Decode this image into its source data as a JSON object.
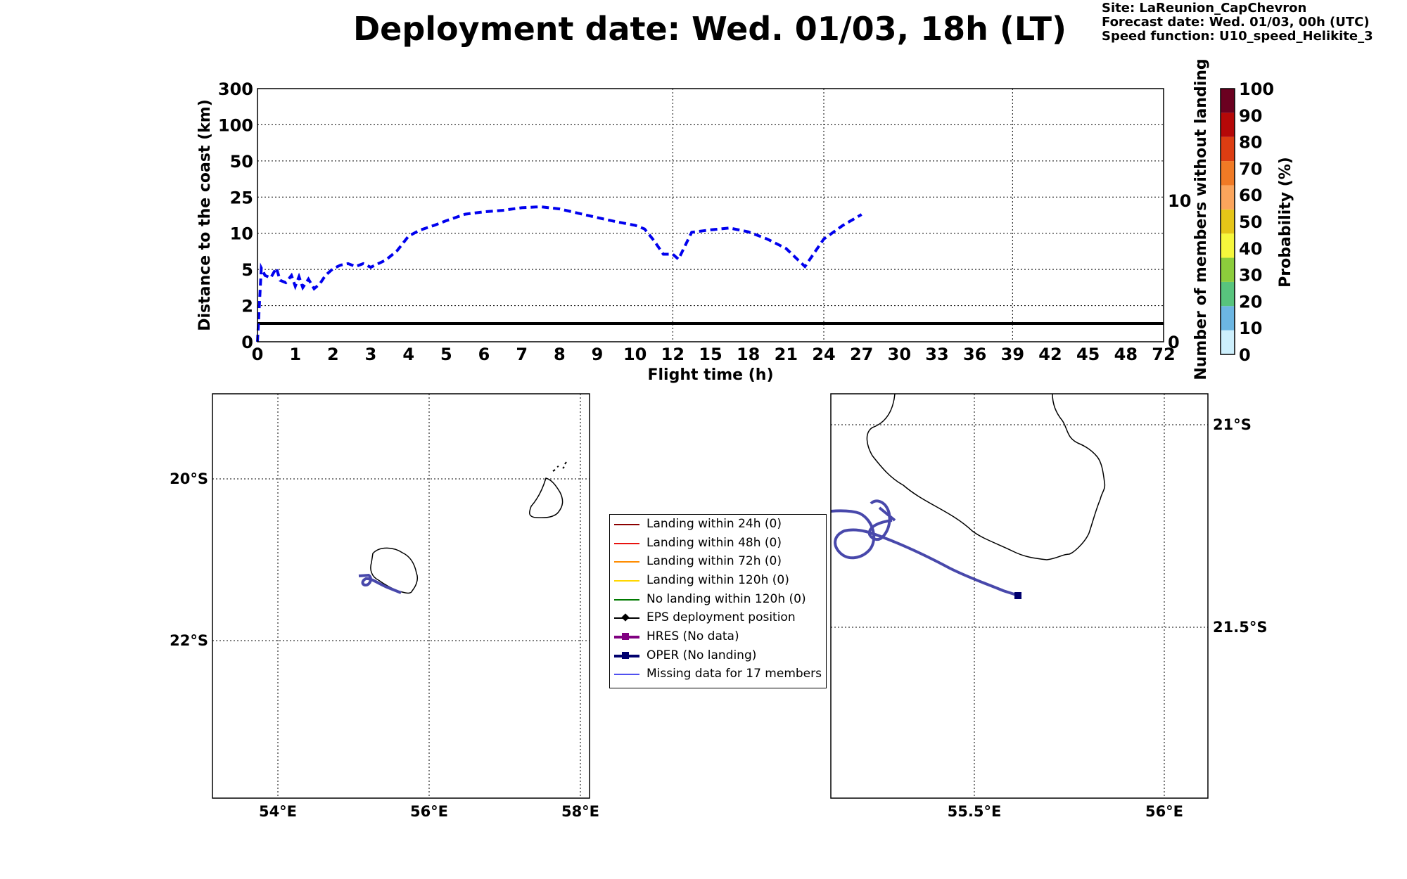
{
  "header": {
    "title": "Deployment date: Wed. 01/03, 18h (LT)",
    "site": "Site: LaReunion_CapChevron",
    "forecast": "Forecast date: Wed. 01/03, 00h (UTC)",
    "speed": "Speed function: U10_speed_Helikite_3"
  },
  "chart_data": [
    {
      "type": "line",
      "title": "",
      "xlabel": "Flight time (h)",
      "ylabel": "Distance to the coast (km)",
      "y2label": "Number of members without landing",
      "x_ticks": [
        "0",
        "1",
        "2",
        "3",
        "4",
        "5",
        "6",
        "7",
        "8",
        "9",
        "10",
        "12",
        "15",
        "18",
        "21",
        "24",
        "27",
        "30",
        "33",
        "36",
        "39",
        "42",
        "45",
        "48",
        "72"
      ],
      "y_ticks": [
        "0",
        "2",
        "5",
        "10",
        "25",
        "50",
        "100",
        "300"
      ],
      "y2_ticks": [
        "0",
        "10"
      ],
      "grid": true,
      "series": [
        {
          "style": "dashed",
          "color": "#0000ee",
          "x": [
            0,
            0.1,
            0.2,
            0.35,
            0.5,
            0.6,
            0.75,
            0.9,
            1.0,
            1.1,
            1.2,
            1.35,
            1.5,
            1.65,
            1.8,
            2.0,
            2.2,
            2.4,
            2.6,
            2.8,
            3.0,
            3.2,
            3.4,
            3.7,
            4.0,
            4.3,
            4.7,
            5.0,
            5.5,
            6.0,
            6.5,
            7.0,
            7.5,
            8.0,
            8.5,
            9.0,
            9.5,
            10.0,
            10.5,
            11.0,
            11.5,
            12.0,
            12.45,
            13.5,
            15.0,
            16.5,
            18.0,
            19.5,
            21.0,
            22.5,
            24.0,
            25.5,
            27.0
          ],
          "y": [
            0,
            5.2,
            4.5,
            4.3,
            5.2,
            4.1,
            3.9,
            4.5,
            3.6,
            4.4,
            3.5,
            4.2,
            3.4,
            3.8,
            4.5,
            5.1,
            5.6,
            5.8,
            5.4,
            5.8,
            5.3,
            5.8,
            6.3,
            7.6,
            9.6,
            11.3,
            13.4,
            15.2,
            17.9,
            18.9,
            19.5,
            20.6,
            21.0,
            20.1,
            18.3,
            16.5,
            14.8,
            13.3,
            11.8,
            9.0,
            7.1,
            7.1,
            6.4,
            10.4,
            11.4,
            12.2,
            10.6,
            9.2,
            7.9,
            5.4,
            9.2,
            13.2,
            17.8
          ]
        }
      ],
      "reference_line": {
        "y": 1,
        "color": "#000000"
      }
    }
  ],
  "colorbar": {
    "label": "Probability (%)",
    "ticks": [
      "0",
      "10",
      "20",
      "30",
      "40",
      "50",
      "60",
      "70",
      "80",
      "90",
      "100"
    ],
    "colors": [
      "#cdeffc",
      "#6cb6e2",
      "#58c47d",
      "#8ccd3c",
      "#f6f73c",
      "#e5c518",
      "#fba55c",
      "#f07a25",
      "#dc3d12",
      "#b50808",
      "#6b0020"
    ]
  },
  "map_left": {
    "lat_ticks": [
      "20°S",
      "22°S"
    ],
    "lon_ticks": [
      "54°E",
      "56°E",
      "58°E"
    ]
  },
  "map_right": {
    "lat_ticks": [
      "21°S",
      "21.5°S"
    ],
    "lon_ticks": [
      "55.5°E",
      "56°E"
    ]
  },
  "legend": {
    "items": [
      {
        "label": "Landing within 24h (0)",
        "color": "#8b0000",
        "marker": "none"
      },
      {
        "label": "Landing within 48h (0)",
        "color": "#e8130f",
        "marker": "none"
      },
      {
        "label": "Landing within 72h (0)",
        "color": "#ff8c00",
        "marker": "none"
      },
      {
        "label": "Landing within 120h (0)",
        "color": "#ffd700",
        "marker": "none"
      },
      {
        "label": "No landing within 120h (0)",
        "color": "#007a00",
        "marker": "none"
      },
      {
        "label": "EPS deployment position",
        "color": "#000000",
        "marker": "diamond"
      },
      {
        "label": "HRES (No data)",
        "color": "#800080",
        "marker": "square"
      },
      {
        "label": "OPER (No landing)",
        "color": "#00006e",
        "marker": "square"
      },
      {
        "label": "Missing data for 17 members",
        "color": "#5050f0",
        "marker": "none"
      }
    ]
  }
}
